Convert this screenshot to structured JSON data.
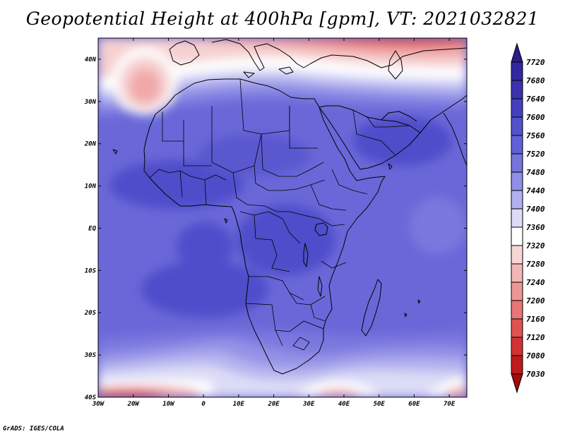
{
  "title": "Geopotential Height at 400hPa [gpm], VT: 2021032821",
  "credit": "GrADS: IGES/COLA",
  "map": {
    "region": "Africa",
    "variable": "Geopotential Height",
    "level": "400hPa",
    "units": "gpm",
    "valid_time": "2021032821",
    "lon_range": [
      -30,
      75
    ],
    "lat_range": [
      -40,
      45
    ],
    "lon_labels": [
      "30W",
      "20W",
      "10W",
      "0",
      "10E",
      "20E",
      "30E",
      "40E",
      "50E",
      "60E",
      "70E"
    ],
    "lat_labels": [
      "40N",
      "30N",
      "20N",
      "10N",
      "EQ",
      "10S",
      "20S",
      "30S",
      "40S"
    ]
  },
  "colorbar": {
    "levels": [
      "7720",
      "7680",
      "7640",
      "7600",
      "7560",
      "7520",
      "7480",
      "7440",
      "7400",
      "7360",
      "7320",
      "7280",
      "7240",
      "7200",
      "7160",
      "7120",
      "7080",
      "7030"
    ],
    "colors": [
      "#2a1e8c",
      "#33279f",
      "#3b32b0",
      "#453fc0",
      "#5351cc",
      "#6260d6",
      "#7674de",
      "#908ee6",
      "#b0b0ee",
      "#dcdcf6",
      "#ffffff",
      "#f8d6d6",
      "#f3b6b6",
      "#ee9696",
      "#e87676",
      "#e05252",
      "#d23232",
      "#c01a1a",
      "#a40a0a"
    ]
  }
}
